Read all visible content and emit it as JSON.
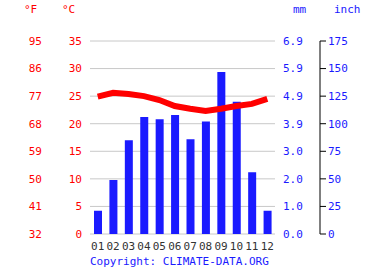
{
  "chart_data": {
    "type": "bar",
    "categories": [
      "01",
      "02",
      "03",
      "04",
      "05",
      "06",
      "07",
      "08",
      "09",
      "10",
      "11",
      "12"
    ],
    "series": [
      {
        "type": "bar",
        "color": "#1a1aff",
        "axis": "y2",
        "values": [
          21,
          49,
          85,
          106,
          104,
          108,
          86,
          102,
          147,
          120,
          56,
          21
        ]
      },
      {
        "type": "line",
        "color": "#ff0000",
        "values": [
          24.9,
          25.6,
          25.4,
          25.0,
          24.3,
          23.2,
          22.7,
          22.3,
          22.7,
          23.2,
          23.6,
          24.5
        ]
      }
    ],
    "y_label": "°C",
    "ylim": [
      0,
      35
    ],
    "yticks": [
      0,
      5,
      10,
      15,
      20,
      25,
      30,
      35
    ],
    "y2_label": "mm",
    "y2lim": [
      0,
      175
    ],
    "y2ticks": [
      0,
      25,
      50,
      75,
      100,
      125,
      150,
      175
    ],
    "y3_label": "°F",
    "y3lim": [
      32,
      95
    ],
    "y3ticks": [
      32,
      41,
      50,
      59,
      68,
      77,
      86,
      95
    ],
    "y4_label": "inch",
    "y4lim": [
      0,
      6.89
    ],
    "y4ticks": [
      {
        "value": 0,
        "label": "0.0"
      },
      {
        "value": 0.98,
        "label": "1.0"
      },
      {
        "value": 1.97,
        "label": "2.0"
      },
      {
        "value": 2.95,
        "label": "3.0"
      },
      {
        "value": 3.94,
        "label": "3.9"
      },
      {
        "value": 4.92,
        "label": "4.9"
      },
      {
        "value": 5.91,
        "label": "5.9"
      },
      {
        "value": 6.89,
        "label": "6.9"
      }
    ],
    "grid": true,
    "annotation": "Copyright: CLIMATE-DATA.ORG"
  }
}
